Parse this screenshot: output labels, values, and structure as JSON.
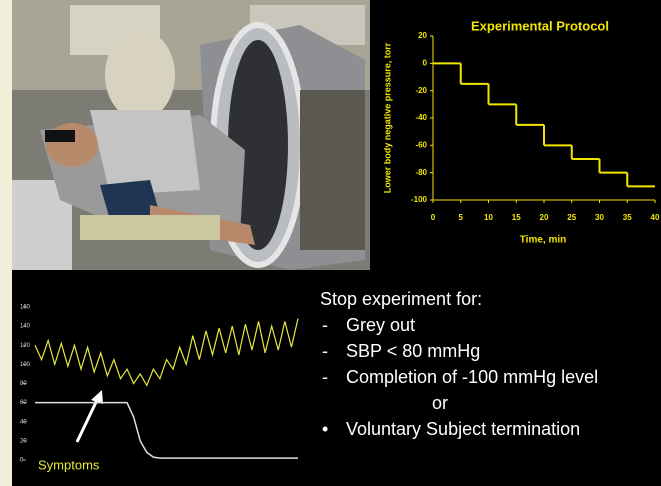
{
  "chart_data": [
    {
      "type": "step",
      "title": "Experimental Protocol",
      "x_label": "Time, min",
      "y_label": "Lower body negative pressure, torr",
      "x": [
        0,
        5,
        10,
        15,
        20,
        25,
        30,
        35
      ],
      "values": [
        0,
        -15,
        -30,
        -45,
        -60,
        -70,
        -80,
        -90
      ],
      "color": "#f2e600",
      "xlim": [
        0,
        40
      ],
      "xticks": [
        0,
        5,
        10,
        15,
        20,
        25,
        30,
        35,
        40
      ],
      "ylim": [
        -100,
        20
      ],
      "yticks": [
        20,
        0,
        -20,
        -40,
        -60,
        -80,
        -100
      ]
    },
    {
      "type": "line",
      "x": [
        0,
        2.5,
        5,
        7.5,
        10,
        12.5,
        15,
        17.5,
        20,
        22.5,
        25,
        27.5,
        30,
        32.5,
        35,
        37.5,
        40,
        42.5,
        45,
        47.5,
        50,
        52.5,
        55,
        57.5,
        60,
        62.5,
        65,
        67.5,
        70,
        72.5,
        75,
        77.5,
        80,
        82.5,
        85,
        87.5,
        90,
        92.5,
        95,
        97.5,
        100
      ],
      "xlim": [
        0,
        100
      ],
      "ylim": [
        0,
        160
      ],
      "yticks": [
        0,
        20,
        40,
        60,
        80,
        100,
        120,
        140,
        160
      ],
      "series": [
        {
          "color": "#e8e840",
          "values": [
            120,
            105,
            125,
            100,
            122,
            98,
            120,
            95,
            118,
            92,
            112,
            88,
            105,
            85,
            95,
            80,
            90,
            78,
            95,
            85,
            105,
            95,
            118,
            100,
            130,
            105,
            135,
            110,
            138,
            112,
            140,
            110,
            142,
            115,
            145,
            112,
            140,
            115,
            145,
            118,
            148
          ]
        },
        {
          "color": "#e0e0e0",
          "values": [
            60,
            60,
            60,
            60,
            60,
            60,
            60,
            60,
            60,
            60,
            60,
            60,
            60,
            60,
            60,
            45,
            20,
            8,
            3,
            2,
            2,
            2,
            2,
            2,
            2,
            2,
            2,
            2,
            2,
            2,
            2,
            2,
            2,
            2,
            2,
            2,
            2,
            2,
            2,
            2,
            2
          ]
        }
      ],
      "annotation": "Symptoms"
    }
  ],
  "text_panel": {
    "heading": "Stop experiment for:",
    "items": [
      {
        "marker": "-",
        "text": "Grey out"
      },
      {
        "marker": "-",
        "text": "SBP < 80 mmHg"
      },
      {
        "marker": "-",
        "text": "Completion of -100 mmHg  level"
      },
      {
        "text": "or"
      },
      {
        "marker": "•",
        "text": "Voluntary Subject termination"
      }
    ]
  }
}
